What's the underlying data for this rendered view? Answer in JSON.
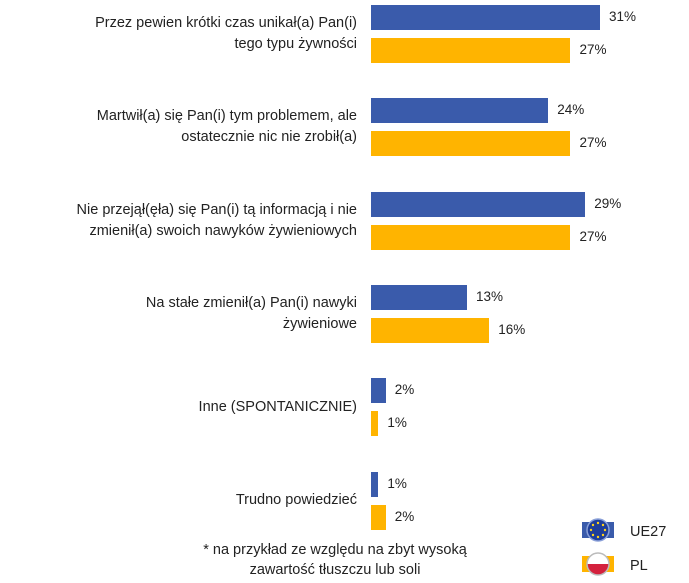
{
  "chart_data": {
    "type": "bar",
    "orientation": "horizontal",
    "categories": [
      "Przez pewien krótki czas unikał(a) Pan(i)\ntego typu żywności",
      "Martwił(a) się Pan(i) tym problemem, ale\nostatecznie nic nie zrobił(a)",
      "Nie przejął(ęła) się Pan(i) tą informacją i nie\nzmienił(a) swoich nawyków żywieniowych",
      "Na stałe zmienił(a) Pan(i) nawyki\nżywieniowe",
      "Inne (SPONTANICZNIE)",
      "Trudno powiedzieć"
    ],
    "series": [
      {
        "name": "UE27",
        "color": "#3a5bab",
        "values": [
          31,
          24,
          29,
          13,
          2,
          1
        ],
        "value_labels": [
          "31%",
          "24%",
          "29%",
          "13%",
          "2%",
          "1%"
        ]
      },
      {
        "name": "PL",
        "color": "#ffb400",
        "values": [
          27,
          27,
          27,
          16,
          1,
          2
        ],
        "value_labels": [
          "27%",
          "27%",
          "27%",
          "16%",
          "1%",
          "2%"
        ]
      }
    ],
    "xlim": [
      0,
      31
    ],
    "legend": "bottom-right",
    "annotations": [
      "* na przykład ze względu na zbyt wysoką\nzawartość tłuszczu lub soli"
    ]
  }
}
